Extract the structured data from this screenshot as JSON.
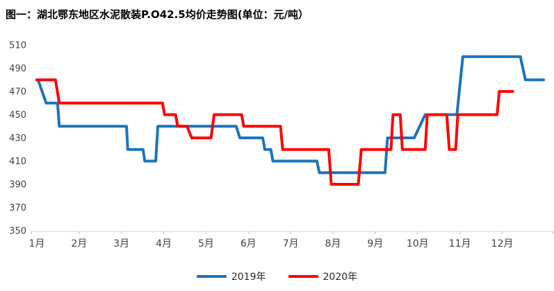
{
  "title": "图一：湖北鄂东地区水泥散装P.O42.5均价走势图(单位：元/吨）",
  "colors": {
    "background": "#FFFFFF",
    "axis_line": "#D9D9D9",
    "axis_tick": "#C6C6C6",
    "axis_label": "#404040",
    "title_text": "#000000",
    "series_2019": "#1B74BC",
    "series_2020": "#FF0000"
  },
  "chart_data": {
    "type": "line",
    "title": "图一：湖北鄂东地区水泥散装P.O42.5均价走势图(单位：元/吨）",
    "unit": "元/吨",
    "grid": false,
    "legend_position": "bottom-center",
    "x_axis": {
      "labels": [
        "1月",
        "2月",
        "3月",
        "4月",
        "5月",
        "6月",
        "7月",
        "8月",
        "9月",
        "10月",
        "11月",
        "12月"
      ],
      "unit": "month",
      "note": "series segments use fractional month positions; 1.0 aligns with the 1月 tick",
      "range": [
        1.0,
        13.2
      ]
    },
    "y_axis": {
      "min": 350,
      "max": 510,
      "step": 20,
      "ticks": [
        510,
        490,
        470,
        450,
        430,
        410,
        390,
        370,
        350
      ]
    },
    "series": [
      {
        "name": "2019年",
        "color": "#1B74BC",
        "segments": [
          {
            "v": 480,
            "from": 1.0,
            "to": 1.03
          },
          {
            "v": 460,
            "from": 1.22,
            "to": 1.49
          },
          {
            "v": 440,
            "from": 1.53,
            "to": 3.12
          },
          {
            "v": 420,
            "from": 3.15,
            "to": 3.51
          },
          {
            "v": 410,
            "from": 3.55,
            "to": 3.81
          },
          {
            "v": 440,
            "from": 3.86,
            "to": 5.71
          },
          {
            "v": 430,
            "from": 5.8,
            "to": 6.34
          },
          {
            "v": 420,
            "from": 6.39,
            "to": 6.53
          },
          {
            "v": 410,
            "from": 6.58,
            "to": 7.62
          },
          {
            "v": 400,
            "from": 7.68,
            "to": 9.23
          },
          {
            "v": 430,
            "from": 9.29,
            "to": 9.92
          },
          {
            "v": 450,
            "from": 10.18,
            "to": 10.93
          },
          {
            "v": 500,
            "from": 11.07,
            "to": 12.43
          },
          {
            "v": 480,
            "from": 12.55,
            "to": 12.98
          }
        ]
      },
      {
        "name": "2020年",
        "color": "#FF0000",
        "segments": [
          {
            "v": 480,
            "from": 1.0,
            "to": 1.44
          },
          {
            "v": 460,
            "from": 1.53,
            "to": 3.97
          },
          {
            "v": 450,
            "from": 4.02,
            "to": 4.28
          },
          {
            "v": 440,
            "from": 4.33,
            "to": 4.55
          },
          {
            "v": 430,
            "from": 4.66,
            "to": 5.12
          },
          {
            "v": 450,
            "from": 5.19,
            "to": 5.84
          },
          {
            "v": 440,
            "from": 5.89,
            "to": 6.76
          },
          {
            "v": 420,
            "from": 6.81,
            "to": 7.9
          },
          {
            "v": 390,
            "from": 7.96,
            "to": 8.6
          },
          {
            "v": 420,
            "from": 8.67,
            "to": 9.37
          },
          {
            "v": 450,
            "from": 9.42,
            "to": 9.59
          },
          {
            "v": 420,
            "from": 9.64,
            "to": 10.18
          },
          {
            "v": 450,
            "from": 10.23,
            "to": 10.69
          },
          {
            "v": 420,
            "from": 10.75,
            "to": 10.9
          },
          {
            "v": 450,
            "from": 10.95,
            "to": 11.88
          },
          {
            "v": 470,
            "from": 11.93,
            "to": 12.25
          }
        ]
      }
    ]
  }
}
